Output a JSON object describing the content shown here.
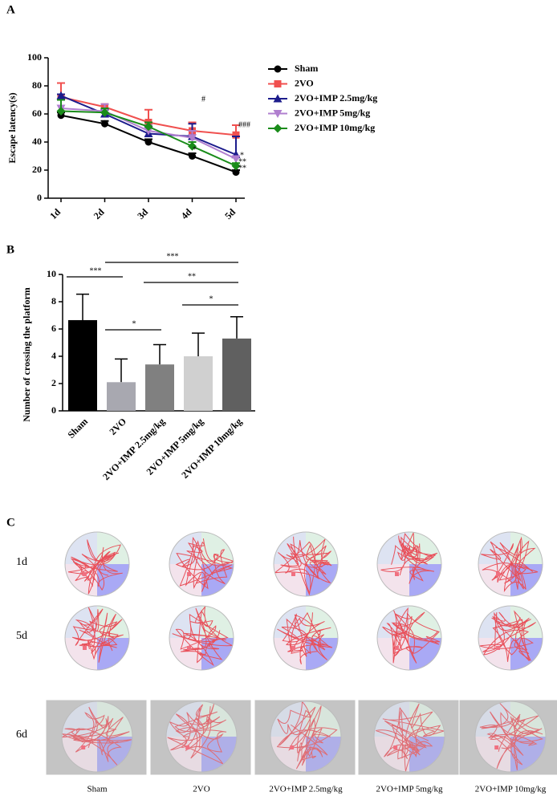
{
  "chart_data": [
    {
      "type": "line",
      "panel_label": "A",
      "ylabel": "Escape latency(s)",
      "categories": [
        "1d",
        "2d",
        "3d",
        "4d",
        "5d"
      ],
      "ylim": [
        0,
        100
      ],
      "yticks": [
        0,
        20,
        40,
        60,
        80,
        100
      ],
      "series": [
        {
          "name": "Sham",
          "color": "#000000",
          "marker": "circle",
          "values": [
            59,
            53,
            40,
            30,
            18.5
          ],
          "errors": [
            2,
            2,
            2,
            2,
            1.5
          ]
        },
        {
          "name": "2VO",
          "color": "#f0504f",
          "marker": "square",
          "values": [
            72,
            65,
            54,
            48,
            45
          ],
          "errors": [
            10,
            2,
            9,
            6,
            7
          ]
        },
        {
          "name": "2VO+IMP 2.5mg/kg",
          "color": "#1c1c8c",
          "marker": "triangle-up",
          "values": [
            73,
            60,
            46,
            44,
            31
          ],
          "errors": [
            1,
            3,
            5,
            9,
            13
          ]
        },
        {
          "name": "2VO+IMP 5mg/kg",
          "color": "#b07fcf",
          "marker": "triangle-down",
          "values": [
            64,
            62,
            48,
            43,
            28
          ],
          "errors": [
            6,
            5,
            4,
            5,
            2
          ]
        },
        {
          "name": "2VO+IMP 10mg/kg",
          "color": "#1a8c1a",
          "marker": "diamond",
          "values": [
            62,
            61,
            51,
            37,
            23
          ],
          "errors": [
            8,
            3,
            3,
            3,
            2
          ]
        }
      ],
      "annotations": [
        "#",
        "###",
        "*",
        "**",
        "**",
        "*"
      ]
    },
    {
      "type": "bar",
      "panel_label": "B",
      "ylabel": "Number of crossing the platform",
      "categories": [
        "Sham",
        "2VO",
        "2VO+IMP 2.5mg/kg",
        "2VO+IMP 5mg/kg",
        "2VO+IMP 10mg/kg"
      ],
      "values": [
        6.65,
        2.1,
        3.4,
        4.0,
        5.3
      ],
      "errors": [
        1.9,
        1.7,
        1.45,
        1.7,
        1.6
      ],
      "colors": [
        "#000000",
        "#a8a8b0",
        "#808080",
        "#d0d0d0",
        "#606060"
      ],
      "ylim": [
        0,
        10
      ],
      "yticks": [
        0,
        2,
        4,
        6,
        8,
        10
      ],
      "brackets": [
        {
          "from": "Sham",
          "to": "2VO",
          "label": "***"
        },
        {
          "from": "2VO",
          "to": "2VO+IMP 10mg/kg",
          "label": "***"
        },
        {
          "from": "2VO",
          "to": "2VO+IMP 2.5mg/kg",
          "label": "*"
        },
        {
          "from": "2VO+IMP 2.5mg/kg",
          "to": "2VO+IMP 10mg/kg",
          "label": "**"
        },
        {
          "from": "2VO+IMP 5mg/kg",
          "to": "2VO+IMP 10mg/kg",
          "label": "*"
        }
      ]
    }
  ],
  "panel_c": {
    "label": "C",
    "rows": [
      "1d",
      "5d",
      "6d"
    ],
    "columns": [
      "Sham",
      "2VO",
      "2VO+IMP 2.5mg/kg",
      "2VO+IMP 5mg/kg",
      "2VO+IMP 10mg/kg"
    ]
  }
}
